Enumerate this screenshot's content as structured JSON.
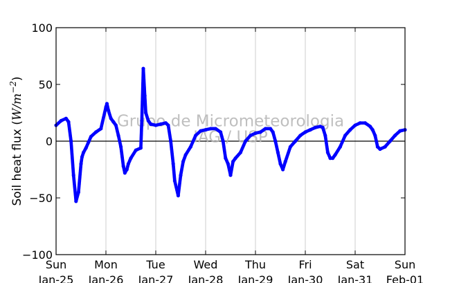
{
  "chart_data": {
    "type": "scatter",
    "title": "",
    "ylabel": "Soil heat flux (W/m⁻²)",
    "ylabel_parts": {
      "prefix": "Soil heat flux (",
      "unit": "W/m",
      "exponent": "−2",
      "suffix": ")"
    },
    "ylim": [
      -100,
      100
    ],
    "xlim": [
      "2015-01-25",
      "2015-02-01"
    ],
    "yticks": [
      100,
      50,
      0,
      -50,
      -100
    ],
    "yticklabels": [
      "100",
      "50",
      "0",
      "−50",
      "−100"
    ],
    "xticks": [
      {
        "day": "Sun",
        "date": "Jan-25"
      },
      {
        "day": "Mon",
        "date": "Jan-26"
      },
      {
        "day": "Tue",
        "date": "Jan-27"
      },
      {
        "day": "Wed",
        "date": "Jan-28"
      },
      {
        "day": "Thu",
        "date": "Jan-29"
      },
      {
        "day": "Fri",
        "date": "Jan-30"
      },
      {
        "day": "Sat",
        "date": "Jan-31"
      },
      {
        "day": "Sun",
        "date": "Feb-01"
      }
    ],
    "grid": "vertical",
    "zero_line": true,
    "series_color": "#0000ff",
    "watermark": [
      "Grupo de Micrometeorologia",
      "IAG / USP"
    ],
    "series": [
      {
        "name": "",
        "x_days": [
          0,
          0.1,
          0.2,
          0.25,
          0.3,
          0.35,
          0.4,
          0.45,
          0.5,
          0.52,
          0.55,
          0.6,
          0.65,
          0.7,
          0.8,
          0.9,
          1.0,
          1.02,
          1.05,
          1.1,
          1.15,
          1.2,
          1.25,
          1.3,
          1.35,
          1.38,
          1.42,
          1.45,
          1.5,
          1.6,
          1.7,
          1.72,
          1.75,
          1.78,
          1.8,
          1.85,
          1.9,
          2.0,
          2.1,
          2.2,
          2.25,
          2.3,
          2.35,
          2.38,
          2.45,
          2.5,
          2.55,
          2.6,
          2.7,
          2.8,
          2.9,
          3.0,
          3.1,
          3.2,
          3.3,
          3.35,
          3.4,
          3.45,
          3.5,
          3.55,
          3.6,
          3.7,
          3.8,
          3.9,
          4.0,
          4.1,
          4.2,
          4.3,
          4.35,
          4.4,
          4.45,
          4.5,
          4.55,
          4.6,
          4.7,
          4.8,
          4.9,
          5.0,
          5.1,
          5.2,
          5.3,
          5.35,
          5.4,
          5.45,
          5.5,
          5.55,
          5.6,
          5.7,
          5.8,
          5.9,
          6.0,
          6.1,
          6.2,
          6.3,
          6.35,
          6.4,
          6.45,
          6.5,
          6.6,
          6.7,
          6.8,
          6.9,
          7.0
        ],
        "y": [
          14,
          18,
          20,
          17,
          0,
          -30,
          -53,
          -45,
          -20,
          -14,
          -10,
          -6,
          -1,
          4,
          8,
          11,
          30,
          33,
          27,
          20,
          17,
          14,
          5,
          -5,
          -22,
          -28,
          -25,
          -20,
          -15,
          -8,
          -6,
          18,
          64,
          40,
          25,
          18,
          15,
          14,
          15,
          16,
          14,
          0,
          -20,
          -35,
          -48,
          -30,
          -18,
          -12,
          -5,
          5,
          9,
          10,
          11,
          11,
          8,
          0,
          -15,
          -20,
          -30,
          -18,
          -15,
          -10,
          0,
          5,
          7,
          8,
          11,
          11,
          8,
          0,
          -10,
          -20,
          -25,
          -18,
          -5,
          0,
          5,
          8,
          10,
          12,
          13,
          12,
          5,
          -10,
          -15,
          -15,
          -12,
          -5,
          5,
          10,
          14,
          16,
          16,
          13,
          10,
          5,
          -5,
          -7,
          -5,
          0,
          5,
          9,
          10
        ]
      }
    ]
  }
}
